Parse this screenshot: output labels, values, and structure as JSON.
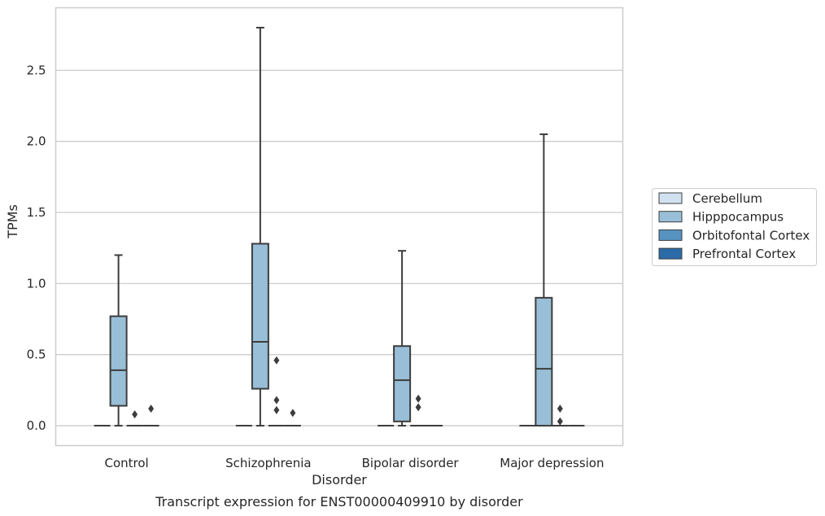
{
  "chart_data": {
    "type": "box",
    "xlabel": "Disorder",
    "ylabel": "TPMs",
    "caption": "Transcript expression for ENST00000409910 by disorder",
    "categories": [
      "Control",
      "Schizophrenia",
      "Bipolar disorder",
      "Major depression"
    ],
    "ylim": [
      -0.14,
      2.94
    ],
    "yticks": [
      0.0,
      0.5,
      1.0,
      1.5,
      2.0,
      2.5
    ],
    "ytick_labels": [
      "0.0",
      "0.5",
      "1.0",
      "1.5",
      "2.0",
      "2.5"
    ],
    "grid": "horizontal",
    "legend_position": "right",
    "series": [
      {
        "name": "Cerebellum",
        "color": "#d1e1ef",
        "boxes": [
          {
            "q1": 0,
            "median": 0,
            "q3": 0,
            "whisker_low": 0,
            "whisker_high": 0,
            "outliers": []
          },
          {
            "q1": 0,
            "median": 0,
            "q3": 0,
            "whisker_low": 0,
            "whisker_high": 0,
            "outliers": []
          },
          {
            "q1": 0,
            "median": 0,
            "q3": 0,
            "whisker_low": 0,
            "whisker_high": 0,
            "outliers": []
          },
          {
            "q1": 0,
            "median": 0,
            "q3": 0,
            "whisker_low": 0,
            "whisker_high": 0,
            "outliers": []
          }
        ]
      },
      {
        "name": "Hipppocampus",
        "color": "#98bfd7",
        "boxes": [
          {
            "q1": 0.14,
            "median": 0.39,
            "q3": 0.77,
            "whisker_low": 0,
            "whisker_high": 1.2,
            "outliers": []
          },
          {
            "q1": 0.26,
            "median": 0.59,
            "q3": 1.28,
            "whisker_low": 0,
            "whisker_high": 2.8,
            "outliers": []
          },
          {
            "q1": 0.03,
            "median": 0.32,
            "q3": 0.56,
            "whisker_low": 0,
            "whisker_high": 1.23,
            "outliers": []
          },
          {
            "q1": 0,
            "median": 0.4,
            "q3": 0.9,
            "whisker_low": 0,
            "whisker_high": 2.05,
            "outliers": []
          }
        ]
      },
      {
        "name": "Orbitofontal Cortex",
        "color": "#5693c1",
        "boxes": [
          {
            "q1": 0,
            "median": 0,
            "q3": 0,
            "whisker_low": 0,
            "whisker_high": 0,
            "outliers": [
              0.08
            ]
          },
          {
            "q1": 0,
            "median": 0,
            "q3": 0,
            "whisker_low": 0,
            "whisker_high": 0,
            "outliers": [
              0.46,
              0.18,
              0.11
            ]
          },
          {
            "q1": 0,
            "median": 0,
            "q3": 0,
            "whisker_low": 0,
            "whisker_high": 0,
            "outliers": [
              0.19,
              0.13
            ]
          },
          {
            "q1": 0,
            "median": 0,
            "q3": 0,
            "whisker_low": 0,
            "whisker_high": 0,
            "outliers": [
              0.12,
              0.03
            ]
          }
        ]
      },
      {
        "name": "Prefrontal Cortex",
        "color": "#2b6ba8",
        "boxes": [
          {
            "q1": 0,
            "median": 0,
            "q3": 0,
            "whisker_low": 0,
            "whisker_high": 0,
            "outliers": [
              0.12
            ]
          },
          {
            "q1": 0,
            "median": 0,
            "q3": 0,
            "whisker_low": 0,
            "whisker_high": 0,
            "outliers": [
              0.09
            ]
          },
          {
            "q1": 0,
            "median": 0,
            "q3": 0,
            "whisker_low": 0,
            "whisker_high": 0,
            "outliers": []
          },
          {
            "q1": 0,
            "median": 0,
            "q3": 0,
            "whisker_low": 0,
            "whisker_high": 0,
            "outliers": []
          }
        ]
      }
    ],
    "colors": {
      "grid": "#cccccc",
      "frame": "#cccccc",
      "line": "#3d3d3d",
      "text": "#262626"
    }
  }
}
